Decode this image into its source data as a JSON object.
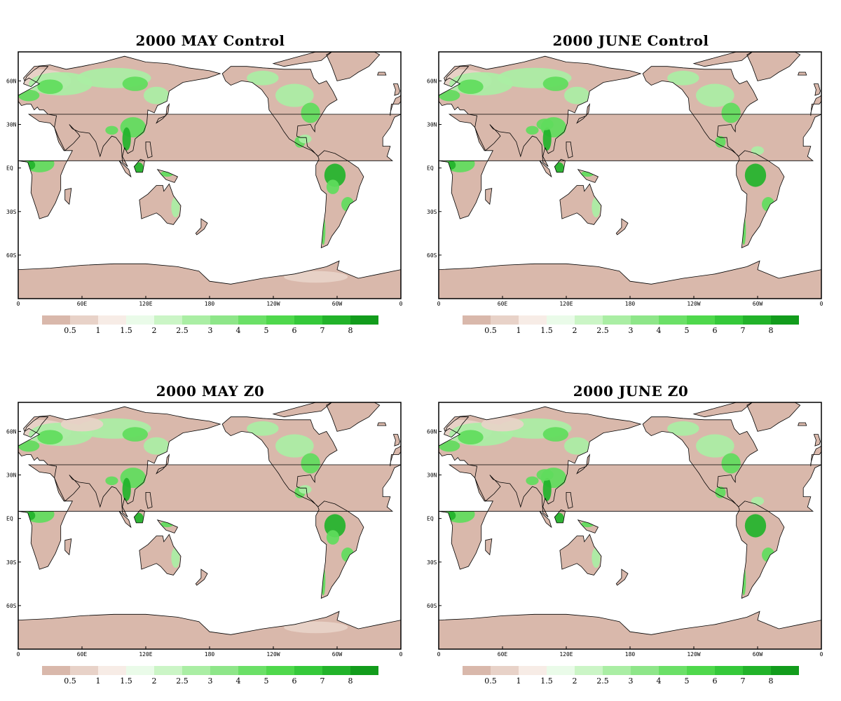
{
  "panels": [
    {
      "title": "2000 MAY Control",
      "month": "may",
      "scenario": "control"
    },
    {
      "title": "2000 JUNE Control",
      "month": "june",
      "scenario": "control"
    },
    {
      "title": "2000 MAY Z0",
      "month": "may",
      "scenario": "z0"
    },
    {
      "title": "2000 JUNE Z0",
      "month": "june",
      "scenario": "z0"
    }
  ],
  "lat_labels": [
    "60N",
    "30N",
    "EQ",
    "30S",
    "60S"
  ],
  "lon_labels": [
    "0",
    "60E",
    "120E",
    "180",
    "120W",
    "60W",
    "0"
  ],
  "colorbar": {
    "colors": [
      "#d9b8ab",
      "#e8d2c8",
      "#f7ece6",
      "#eafbe9",
      "#cbf5c6",
      "#aaeea4",
      "#8ee689",
      "#6be067",
      "#4fd84c",
      "#35c93a",
      "#22b32a",
      "#129c1c"
    ],
    "labels": [
      "0.5",
      "1",
      "1.5",
      "2",
      "2.5",
      "3",
      "4",
      "5",
      "6",
      "7",
      "8"
    ]
  },
  "colors": {
    "land_dry": "#d9b8ab",
    "land_light": "#e8d2c8",
    "green_light": "#aaeea4",
    "green_mid": "#5fdc5c",
    "green_dark": "#22b32a",
    "ocean": "#ffffff"
  }
}
